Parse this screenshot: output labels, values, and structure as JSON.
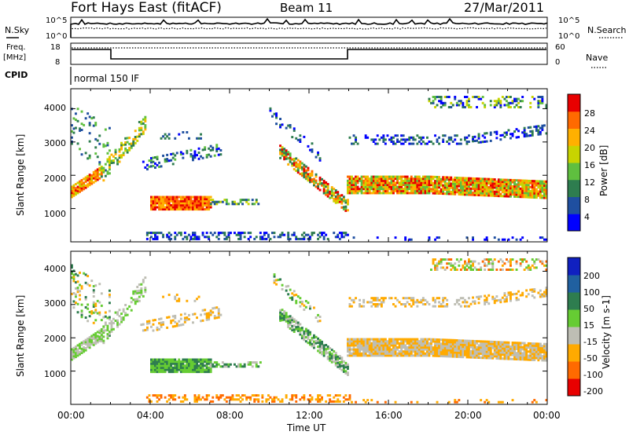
{
  "header": {
    "station": "Fort Hays East (fitACF)",
    "beam": "Beam 11",
    "date": "27/Mar/2011"
  },
  "status_panel": {
    "nsky_label": "N.Sky",
    "nsearch_label": "N.Search",
    "freq_label_1": "Freq.",
    "freq_label_2": "[MHz]",
    "nave_label": "Nave",
    "cpid_label": "CPID",
    "cpid_value": "normal 150 IF",
    "noise_ticks": [
      "10^5",
      "10^0"
    ],
    "freq_ticks": [
      "18",
      "8"
    ],
    "nave_ticks": [
      "60",
      "0"
    ]
  },
  "chart_data": [
    {
      "type": "heatmap",
      "name": "power",
      "ylabel": "Slant Range [km]",
      "yticks": [
        "4000",
        "3000",
        "2000",
        "1000"
      ],
      "colorbar_label": "Power [dB]",
      "colorbar_ticks": [
        "28",
        "24",
        "20",
        "16",
        "12",
        "8",
        "4"
      ],
      "colors": [
        "#0000ff",
        "#1f4fa0",
        "#2e7d4f",
        "#5fbf3f",
        "#c8d400",
        "#ffb000",
        "#ff6a00",
        "#e80000"
      ]
    },
    {
      "type": "heatmap",
      "name": "velocity",
      "ylabel": "Slant Range [km]",
      "yticks": [
        "4000",
        "3000",
        "2000",
        "1000"
      ],
      "colorbar_label": "Velocity [m s-1]",
      "colorbar_ticks": [
        "200",
        "100",
        "50",
        "15",
        "-15",
        "-50",
        "-100",
        "-200"
      ],
      "colors": [
        "#1020c0",
        "#2060a0",
        "#2e7d4f",
        "#66cc33",
        "#bebeb4",
        "#ffaa00",
        "#ff6a00",
        "#e80000"
      ]
    }
  ],
  "time_axis": {
    "ticks": [
      "00:00",
      "04:00",
      "08:00",
      "12:00",
      "16:00",
      "20:00",
      "00:00"
    ],
    "label": "Time UT"
  }
}
